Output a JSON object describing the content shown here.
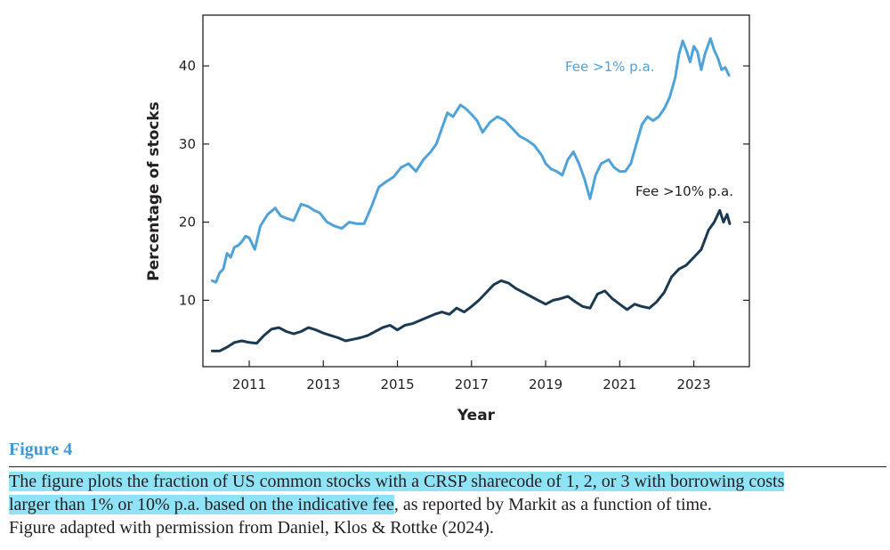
{
  "chart_data": {
    "type": "line",
    "title": "",
    "xlabel": "Year",
    "ylabel": "Percentage of stocks",
    "xlim": [
      2009.75,
      2024.5
    ],
    "ylim": [
      1.5,
      46.5
    ],
    "x_ticks": [
      2011,
      2013,
      2015,
      2017,
      2019,
      2021,
      2023
    ],
    "y_ticks": [
      10,
      20,
      30,
      40
    ],
    "grid": false,
    "series": [
      {
        "name": "Fee >1% p.a.",
        "color": "#4fa3d8",
        "x": [
          2010.0,
          2010.1,
          2010.2,
          2010.3,
          2010.4,
          2010.5,
          2010.6,
          2010.7,
          2010.8,
          2010.9,
          2011.0,
          2011.15,
          2011.3,
          2011.5,
          2011.7,
          2011.85,
          2012.0,
          2012.2,
          2012.4,
          2012.6,
          2012.75,
          2012.9,
          2013.1,
          2013.3,
          2013.5,
          2013.7,
          2013.9,
          2014.1,
          2014.3,
          2014.5,
          2014.7,
          2014.9,
          2015.1,
          2015.3,
          2015.5,
          2015.7,
          2015.9,
          2016.05,
          2016.2,
          2016.35,
          2016.5,
          2016.7,
          2016.85,
          2017.0,
          2017.15,
          2017.3,
          2017.5,
          2017.7,
          2017.9,
          2018.1,
          2018.3,
          2018.5,
          2018.7,
          2018.9,
          2019.0,
          2019.15,
          2019.3,
          2019.45,
          2019.6,
          2019.75,
          2019.9,
          2020.05,
          2020.2,
          2020.35,
          2020.5,
          2020.7,
          2020.85,
          2021.0,
          2021.15,
          2021.3,
          2021.45,
          2021.6,
          2021.75,
          2021.9,
          2022.05,
          2022.2,
          2022.35,
          2022.5,
          2022.6,
          2022.7,
          2022.8,
          2022.9,
          2023.0,
          2023.1,
          2023.2,
          2023.3,
          2023.45,
          2023.55,
          2023.65,
          2023.75,
          2023.85,
          2023.95
        ],
        "values": [
          12.5,
          12.3,
          13.5,
          14.0,
          16.0,
          15.5,
          16.8,
          17.0,
          17.5,
          18.2,
          18.0,
          16.5,
          19.5,
          21.0,
          21.8,
          20.8,
          20.5,
          20.2,
          22.3,
          22.0,
          21.5,
          21.2,
          20.0,
          19.5,
          19.2,
          20.0,
          19.8,
          19.8,
          22.0,
          24.5,
          25.2,
          25.8,
          27.0,
          27.5,
          26.5,
          28.0,
          29.0,
          30.0,
          32.0,
          34.0,
          33.5,
          35.0,
          34.5,
          33.8,
          33.0,
          31.5,
          32.8,
          33.5,
          33.0,
          32.0,
          31.0,
          30.5,
          29.8,
          28.5,
          27.5,
          26.8,
          26.5,
          26.0,
          28.0,
          29.0,
          27.5,
          25.5,
          23.0,
          26.0,
          27.5,
          28.0,
          27.0,
          26.5,
          26.5,
          27.5,
          30.0,
          32.5,
          33.5,
          33.0,
          33.5,
          34.5,
          36.0,
          38.5,
          41.5,
          43.2,
          42.0,
          40.5,
          42.5,
          41.8,
          39.5,
          41.5,
          43.5,
          42.0,
          41.0,
          39.5,
          39.8,
          38.8
        ]
      },
      {
        "name": "Fee >10% p.a.",
        "color": "#1b3a52",
        "x": [
          2010.0,
          2010.2,
          2010.4,
          2010.6,
          2010.8,
          2011.0,
          2011.2,
          2011.4,
          2011.6,
          2011.8,
          2012.0,
          2012.2,
          2012.4,
          2012.6,
          2012.8,
          2013.0,
          2013.2,
          2013.4,
          2013.6,
          2013.8,
          2014.0,
          2014.2,
          2014.4,
          2014.6,
          2014.8,
          2015.0,
          2015.2,
          2015.4,
          2015.6,
          2015.8,
          2016.0,
          2016.2,
          2016.4,
          2016.6,
          2016.8,
          2017.0,
          2017.2,
          2017.4,
          2017.6,
          2017.8,
          2018.0,
          2018.2,
          2018.4,
          2018.6,
          2018.8,
          2019.0,
          2019.2,
          2019.4,
          2019.6,
          2019.8,
          2020.0,
          2020.2,
          2020.4,
          2020.6,
          2020.8,
          2021.0,
          2021.2,
          2021.4,
          2021.6,
          2021.8,
          2022.0,
          2022.2,
          2022.4,
          2022.6,
          2022.8,
          2023.0,
          2023.2,
          2023.4,
          2023.55,
          2023.7,
          2023.8,
          2023.9,
          2023.97
        ],
        "values": [
          3.5,
          3.5,
          4.0,
          4.6,
          4.8,
          4.6,
          4.5,
          5.5,
          6.3,
          6.5,
          6.0,
          5.7,
          6.0,
          6.5,
          6.2,
          5.8,
          5.5,
          5.2,
          4.8,
          5.0,
          5.2,
          5.5,
          6.0,
          6.5,
          6.8,
          6.2,
          6.8,
          7.0,
          7.4,
          7.8,
          8.2,
          8.5,
          8.2,
          9.0,
          8.5,
          9.2,
          10.0,
          11.0,
          12.0,
          12.5,
          12.2,
          11.5,
          11.0,
          10.5,
          10.0,
          9.5,
          10.0,
          10.2,
          10.5,
          9.8,
          9.2,
          9.0,
          10.8,
          11.2,
          10.2,
          9.5,
          8.8,
          9.5,
          9.2,
          9.0,
          9.8,
          11.0,
          13.0,
          14.0,
          14.5,
          15.5,
          16.5,
          19.0,
          20.0,
          21.5,
          20.0,
          21.0,
          19.8
        ]
      }
    ]
  },
  "figure_label": "Figure 4",
  "caption": {
    "line1": "The figure plots the fraction of US common stocks with a CRSP sharecode of 1, 2, or 3 with borrowing costs",
    "line2_highlighted": "larger than 1% or 10% p.a. based on the indicative fee",
    "line2_rest": ", as reported by Markit as a function of time.",
    "line3": "Figure adapted with permission from Daniel, Klos & Rottke (2024)."
  }
}
